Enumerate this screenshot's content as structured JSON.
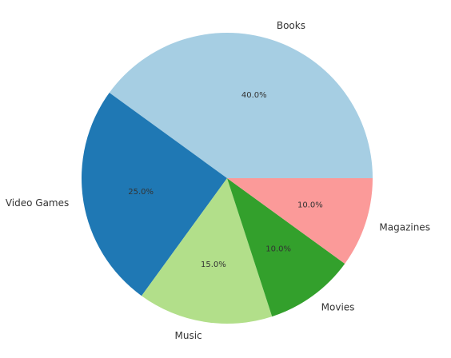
{
  "chart_data": {
    "type": "pie",
    "categories": [
      "Books",
      "Video Games",
      "Music",
      "Movies",
      "Magazines"
    ],
    "values": [
      40.0,
      25.0,
      15.0,
      10.0,
      10.0
    ],
    "labels": [
      "40.0%",
      "25.0%",
      "15.0%",
      "10.0%",
      "10.0%"
    ],
    "colors": [
      "#a6cee3",
      "#1f78b4",
      "#b2df8a",
      "#33a02c",
      "#fb9a99"
    ],
    "start_angle_deg": 0,
    "direction": "counterclockwise",
    "title": ""
  }
}
